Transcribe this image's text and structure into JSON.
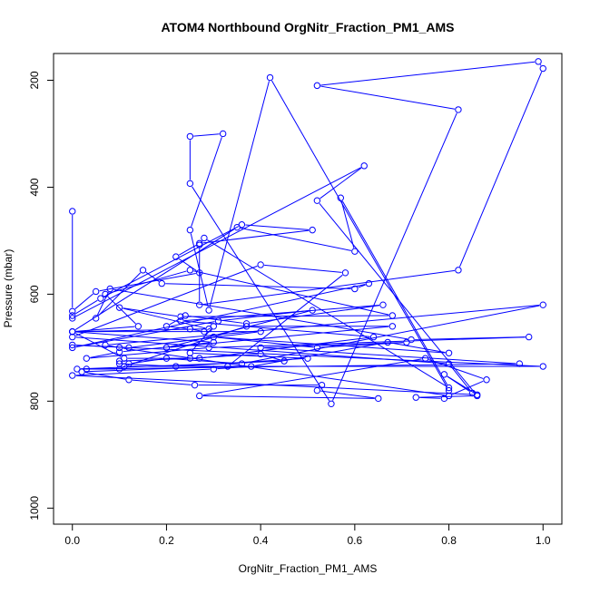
{
  "chart_data": {
    "type": "line",
    "title": "ATOM4 Northbound OrgNitr_Fraction_PM1_AMS",
    "xlabel": "OrgNitr_Fraction_PM1_AMS",
    "ylabel": "Pressure (mbar)",
    "xlim": [
      -0.04,
      1.04
    ],
    "ylim": [
      1030,
      150
    ],
    "y_reversed": true,
    "grid": false,
    "legend": "none",
    "line_color": "#0000ff",
    "marker": "open-circle",
    "x_ticks": [
      0.0,
      0.2,
      0.4,
      0.6,
      0.8,
      1.0
    ],
    "x_tick_labels": [
      "0.0",
      "0.2",
      "0.4",
      "0.6",
      "0.8",
      "1.0"
    ],
    "y_ticks": [
      200,
      400,
      600,
      800,
      1000
    ],
    "y_tick_labels": [
      "200",
      "400",
      "600",
      "800",
      "1000"
    ],
    "series": [
      {
        "x": [
          0.0,
          0.0,
          0.05,
          0.27,
          0.22,
          0.27,
          0.51,
          0.36,
          0.06,
          0.0,
          0.0,
          0.62,
          0.52,
          0.86,
          0.73,
          0.79,
          0.8,
          0.42,
          0.29,
          0.25,
          0.32,
          0.25,
          0.25,
          0.55,
          0.82,
          0.52,
          0.99,
          1.0,
          0.82,
          0.27,
          0.27,
          0.28,
          0.8,
          0.57,
          0.6,
          0.35,
          0.0,
          0.14,
          0.07,
          0.25,
          0.68,
          0.23,
          0.1,
          0.29,
          0.0,
          0.4,
          0.12,
          0.0,
          1.0,
          0.11,
          0.37,
          0.68,
          0.2,
          0.51,
          0.31,
          0.0,
          0.63,
          0.6,
          0.19,
          0.15,
          0.05,
          0.08,
          0.72,
          0.97,
          0.29,
          0.03,
          0.1,
          0.3,
          0.0,
          0.11,
          0.27,
          0.64,
          0.23,
          0.66,
          0.37,
          0.24,
          0.2,
          0.25,
          0.28,
          0.3,
          0.25,
          0.5,
          0.22,
          0.1,
          0.1,
          0.25,
          0.4,
          0.45,
          0.01,
          0.1,
          0.12,
          0.2,
          0.36,
          1.0,
          0.07,
          0.1,
          0.8,
          0.88,
          0.75,
          0.27,
          0.65,
          0.52,
          0.53,
          0.26,
          0.12,
          0.02,
          0.33,
          0.58,
          0.4,
          0.0,
          0.8,
          0.85,
          0.79,
          0.86,
          0.0,
          0.3,
          0.38,
          0.67,
          0.8,
          0.3,
          0.52,
          0.71,
          0.4,
          0.95,
          0.03
        ],
        "y": [
          445,
          632,
          595,
          560,
          530,
          505,
          480,
          470,
          608,
          640,
          645,
          360,
          425,
          790,
          793,
          795,
          780,
          195,
          630,
          480,
          300,
          305,
          393,
          805,
          255,
          210,
          165,
          178,
          555,
          620,
          508,
          495,
          775,
          420,
          520,
          475,
          670,
          660,
          600,
          555,
          640,
          642,
          625,
          665,
          670,
          670,
          700,
          695,
          735,
          735,
          660,
          660,
          700,
          630,
          650,
          700,
          580,
          590,
          580,
          555,
          645,
          590,
          685,
          680,
          700,
          720,
          708,
          690,
          670,
          720,
          720,
          680,
          650,
          620,
          655,
          640,
          660,
          665,
          670,
          660,
          710,
          720,
          735,
          730,
          725,
          720,
          712,
          725,
          740,
          740,
          730,
          720,
          730,
          620,
          695,
          700,
          790,
          760,
          720,
          790,
          795,
          780,
          770,
          770,
          760,
          745,
          735,
          560,
          545,
          680,
          730,
          785,
          750,
          788,
          752,
          740,
          735,
          690,
          710,
          680,
          700,
          690,
          700,
          730,
          740
        ]
      }
    ]
  }
}
